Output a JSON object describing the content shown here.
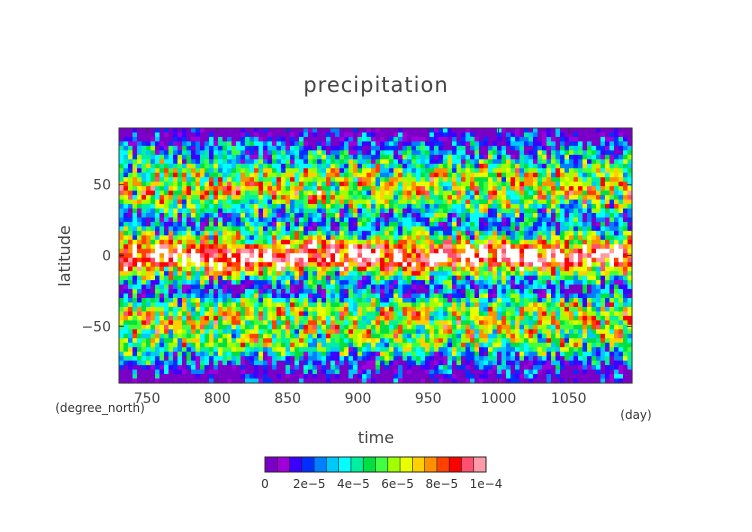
{
  "chart_data": {
    "type": "heatmap",
    "title": "precipitation",
    "xlabel": "time",
    "ylabel": "latitude",
    "x_units": "(day)",
    "y_units": "(degree_north)",
    "xlim": [
      730,
      1095
    ],
    "ylim": [
      -90,
      90
    ],
    "x_ticks": [
      750,
      800,
      850,
      900,
      950,
      1000,
      1050
    ],
    "y_ticks": [
      50,
      0,
      -50
    ],
    "y_tick_labels": [
      "50",
      "0",
      "−50"
    ],
    "colorbar": {
      "min": 0,
      "max": 0.0001,
      "tick_labels": [
        "0",
        "2e−5",
        "4e−5",
        "6e−5",
        "8e−5",
        "1e−4"
      ],
      "colors": [
        "#7a00c8",
        "#a000d8",
        "#3c00ff",
        "#0030ff",
        "#0080ff",
        "#00c8ff",
        "#00ffff",
        "#00f0a0",
        "#00e040",
        "#40ff40",
        "#a0ff00",
        "#e8ff00",
        "#ffd000",
        "#ff9000",
        "#ff4000",
        "#ff0000",
        "#ff5070",
        "#ff9aa8"
      ],
      "over_color": "#ffffff"
    }
  }
}
